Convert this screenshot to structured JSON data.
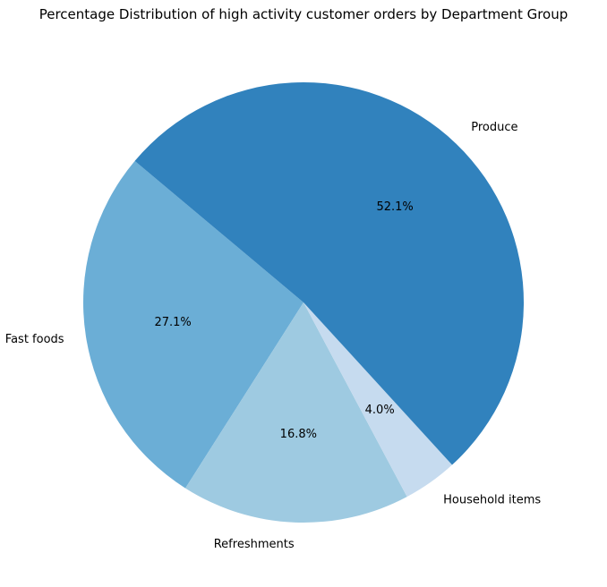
{
  "chart_data": {
    "type": "pie",
    "title": "Percentage Distribution of high activity customer orders by Department Group",
    "categories": [
      "Fast foods",
      "Refreshments",
      "Household items",
      "Produce"
    ],
    "values": [
      27.1,
      16.8,
      4.0,
      52.1
    ],
    "value_labels": [
      "27.1%",
      "16.8%",
      "4.0%",
      "52.1%"
    ],
    "colors": [
      "#6baed6",
      "#9ecae1",
      "#c6dbef",
      "#3182bd"
    ],
    "start_angle_deg": 140,
    "direction": "counterclockwise",
    "legend": "none"
  }
}
